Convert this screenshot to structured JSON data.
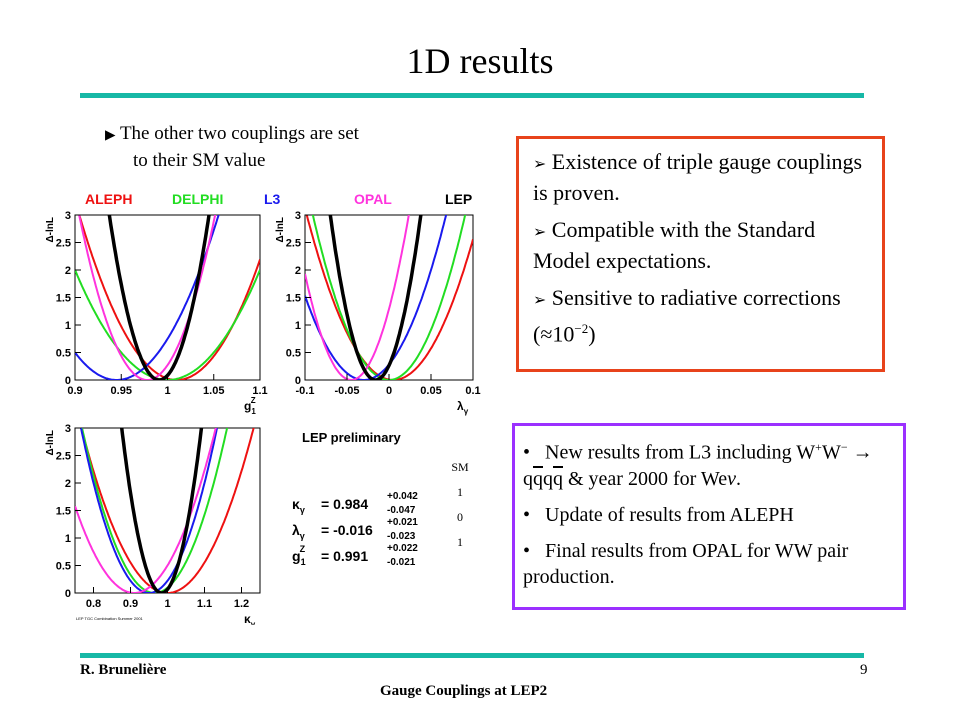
{
  "slide": {
    "title": "1D results",
    "note_line1": "The other two couplings are set",
    "note_line2": "to their SM value",
    "red_box": [
      {
        "text": "Existence of triple gauge couplings is proven."
      },
      {
        "text": "Compatible with the Standard Model expectations."
      },
      {
        "text_pre": "Sensitive to radiative corrections (",
        "symbol": "≈",
        "base": "10",
        "exponent": "−2",
        "text_post": ")"
      }
    ],
    "purple_box": {
      "item1_pre": "New results from L3 including W",
      "item1_sup1": "+",
      "item1_w2": "W",
      "item1_sup2": "−",
      "item1_arrow": " → ",
      "item1_q1": "q",
      "item1_q2": "q",
      "item1_q3": "q",
      "item1_q4": "q",
      "item1_post": " & year 2000 for We",
      "item1_nu": "ν",
      "item1_end": ".",
      "item2": "Update of results from ALEPH",
      "item3": "Final results from OPAL for WW pair production."
    },
    "sm_header": "SM",
    "sm_values": [
      "1",
      "0",
      "1"
    ],
    "footer_left": "R. Brunelière",
    "footer_center": "Gauge Couplings at LEP2",
    "page_number": "9",
    "colors": {
      "rule": "#17b8a6",
      "red_box": "#e8431b",
      "purple_box": "#9b30ff"
    }
  },
  "chart_data": {
    "type": "line",
    "experiments": [
      {
        "name": "ALEPH",
        "color": "#ee1111"
      },
      {
        "name": "DELPHI",
        "color": "#22dd22"
      },
      {
        "name": "L3",
        "color": "#1a1aee"
      },
      {
        "name": "OPAL",
        "color": "#ff33dd"
      },
      {
        "name": "LEP",
        "color": "#000000"
      }
    ],
    "y_label": "Δ-lnL",
    "y_ticks": [
      "0",
      "0.5",
      "1",
      "1.5",
      "2",
      "2.5",
      "3"
    ],
    "ylim": [
      0,
      3
    ],
    "panels": [
      {
        "id": "g1z",
        "x_label_base": "g",
        "x_label_sub": "1",
        "x_label_sup": "Z",
        "x_ticks": [
          "0.9",
          "0.95",
          "1",
          "1.05",
          "1.1"
        ],
        "xlim": [
          0.9,
          1.1
        ],
        "curves": [
          {
            "name": "ALEPH",
            "min": 1.01,
            "sigma": 0.043
          },
          {
            "name": "DELPHI",
            "min": 1.0,
            "sigma": 0.05
          },
          {
            "name": "L3",
            "min": 0.945,
            "sigma": 0.045
          },
          {
            "name": "OPAL",
            "min": 0.978,
            "sigma": 0.03
          },
          {
            "name": "LEP",
            "min": 0.991,
            "sigma": 0.022
          }
        ]
      },
      {
        "id": "lambda",
        "x_label_base": "λ",
        "x_label_sub": "γ",
        "x_ticks": [
          "-0.1",
          "-0.05",
          "0",
          "0.05",
          "0.1"
        ],
        "xlim": [
          -0.1,
          0.1
        ],
        "curves": [
          {
            "name": "ALEPH",
            "min": 0.005,
            "sigma": 0.042
          },
          {
            "name": "DELPHI",
            "min": 0.0,
            "sigma": 0.037
          },
          {
            "name": "L3",
            "min": -0.03,
            "sigma": 0.04
          },
          {
            "name": "OPAL",
            "min": -0.045,
            "sigma": 0.028
          },
          {
            "name": "LEP",
            "min": -0.016,
            "sigma": 0.022
          }
        ]
      },
      {
        "id": "kappa",
        "x_label_base": "κ",
        "x_label_sub": "γ",
        "x_ticks": [
          "0.8",
          "0.9",
          "1",
          "1.1",
          "1.2"
        ],
        "xlim": [
          0.75,
          1.25
        ],
        "curves": [
          {
            "name": "ALEPH",
            "min": 1.0,
            "sigma": 0.095
          },
          {
            "name": "DELPHI",
            "min": 0.965,
            "sigma": 0.08
          },
          {
            "name": "L3",
            "min": 0.95,
            "sigma": 0.075
          },
          {
            "name": "OPAL",
            "min": 0.91,
            "sigma": 0.09
          },
          {
            "name": "LEP",
            "min": 0.984,
            "sigma": 0.044
          }
        ]
      }
    ],
    "results": {
      "heading": "LEP preliminary",
      "rows": [
        {
          "sym": "κ",
          "sub": "γ",
          "sup": "",
          "value": "= 0.984",
          "plus": "+0.042",
          "minus": "-0.047"
        },
        {
          "sym": "λ",
          "sub": "γ",
          "sup": "",
          "value": "= -0.016",
          "plus": "+0.021",
          "minus": "-0.023"
        },
        {
          "sym": "g",
          "sub": "1",
          "sup": "Z",
          "value": "= 0.991",
          "plus": "+0.022",
          "minus": "-0.021"
        }
      ],
      "small_text": "LEP TGC Combination Summer 2001"
    }
  }
}
